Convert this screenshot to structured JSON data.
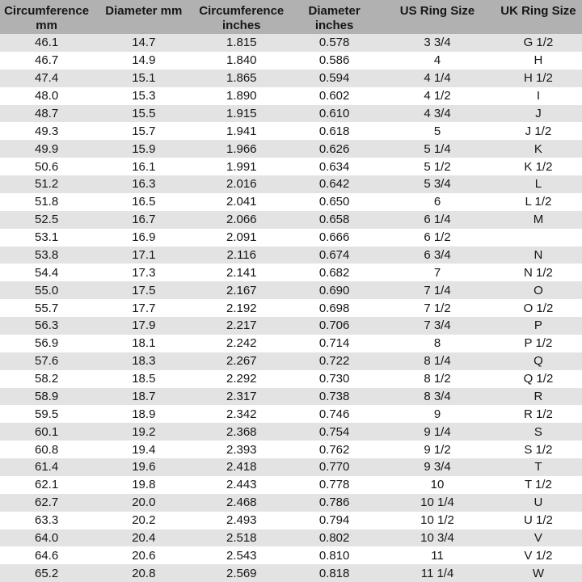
{
  "colors": {
    "header_bg": "#b1b1b1",
    "row_alt_bg": "#e3e3e3",
    "row_bg": "#ffffff",
    "text": "#161616"
  },
  "table": {
    "headers": [
      "Circumference mm",
      "Diameter mm",
      "Circumference inches",
      "Diameter inches",
      "US Ring Size",
      "UK Ring Size"
    ],
    "column_keys": [
      "circumference-mm",
      "diameter-mm",
      "circumference-inches",
      "diameter-inches",
      "us-ring-size",
      "uk-ring-size"
    ],
    "rows": [
      [
        "46.1",
        "14.7",
        "1.815",
        "0.578",
        "3 3/4",
        "G 1/2"
      ],
      [
        "46.7",
        "14.9",
        "1.840",
        "0.586",
        "4",
        "H"
      ],
      [
        "47.4",
        "15.1",
        "1.865",
        "0.594",
        "4 1/4",
        "H 1/2"
      ],
      [
        "48.0",
        "15.3",
        "1.890",
        "0.602",
        "4 1/2",
        "I"
      ],
      [
        "48.7",
        "15.5",
        "1.915",
        "0.610",
        "4 3/4",
        "J"
      ],
      [
        "49.3",
        "15.7",
        "1.941",
        "0.618",
        "5",
        "J 1/2"
      ],
      [
        "49.9",
        "15.9",
        "1.966",
        "0.626",
        "5 1/4",
        "K"
      ],
      [
        "50.6",
        "16.1",
        "1.991",
        "0.634",
        "5 1/2",
        "K 1/2"
      ],
      [
        "51.2",
        "16.3",
        "2.016",
        "0.642",
        "5 3/4",
        "L"
      ],
      [
        "51.8",
        "16.5",
        "2.041",
        "0.650",
        "6",
        "L 1/2"
      ],
      [
        "52.5",
        "16.7",
        "2.066",
        "0.658",
        "6 1/4",
        "M"
      ],
      [
        "53.1",
        "16.9",
        "2.091",
        "0.666",
        "6 1/2",
        ""
      ],
      [
        "53.8",
        "17.1",
        "2.116",
        "0.674",
        "6 3/4",
        "N"
      ],
      [
        "54.4",
        "17.3",
        "2.141",
        "0.682",
        "7",
        "N 1/2"
      ],
      [
        "55.0",
        "17.5",
        "2.167",
        "0.690",
        "7 1/4",
        "O"
      ],
      [
        "55.7",
        "17.7",
        "2.192",
        "0.698",
        "7 1/2",
        "O 1/2"
      ],
      [
        "56.3",
        "17.9",
        "2.217",
        "0.706",
        "7 3/4",
        "P"
      ],
      [
        "56.9",
        "18.1",
        "2.242",
        "0.714",
        "8",
        "P 1/2"
      ],
      [
        "57.6",
        "18.3",
        "2.267",
        "0.722",
        "8 1/4",
        "Q"
      ],
      [
        "58.2",
        "18.5",
        "2.292",
        "0.730",
        "8 1/2",
        "Q 1/2"
      ],
      [
        "58.9",
        "18.7",
        "2.317",
        "0.738",
        "8 3/4",
        "R"
      ],
      [
        "59.5",
        "18.9",
        "2.342",
        "0.746",
        "9",
        "R 1/2"
      ],
      [
        "60.1",
        "19.2",
        "2.368",
        "0.754",
        "9 1/4",
        "S"
      ],
      [
        "60.8",
        "19.4",
        "2.393",
        "0.762",
        "9 1/2",
        "S 1/2"
      ],
      [
        "61.4",
        "19.6",
        "2.418",
        "0.770",
        "9 3/4",
        "T"
      ],
      [
        "62.1",
        "19.8",
        "2.443",
        "0.778",
        "10",
        "T 1/2"
      ],
      [
        "62.7",
        "20.0",
        "2.468",
        "0.786",
        "10 1/4",
        "U"
      ],
      [
        "63.3",
        "20.2",
        "2.493",
        "0.794",
        "10 1/2",
        "U 1/2"
      ],
      [
        "64.0",
        "20.4",
        "2.518",
        "0.802",
        "10 3/4",
        "V"
      ],
      [
        "64.6",
        "20.6",
        "2.543",
        "0.810",
        "11",
        "V 1/2"
      ],
      [
        "65.2",
        "20.8",
        "2.569",
        "0.818",
        "11 1/4",
        "W"
      ]
    ]
  }
}
